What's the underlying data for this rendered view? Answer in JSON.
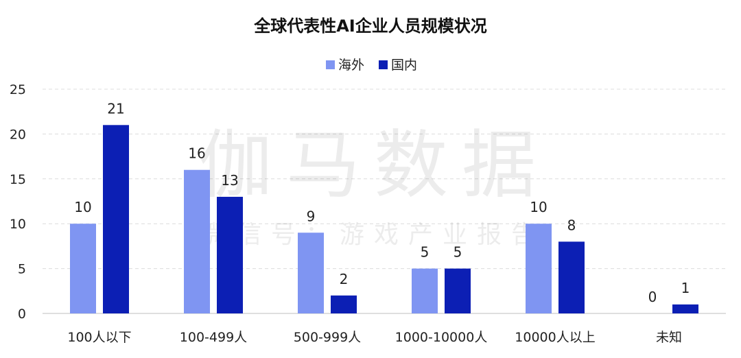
{
  "chart_data": {
    "type": "bar",
    "title": "全球代表性AI企业人员规模状况",
    "categories": [
      "100人以下",
      "100-499人",
      "500-999人",
      "1000-10000人",
      "10000人以上",
      "未知"
    ],
    "series": [
      {
        "name": "海外",
        "values": [
          10,
          16,
          9,
          5,
          10,
          0
        ],
        "color": "#7f95f2"
      },
      {
        "name": "国内",
        "values": [
          21,
          13,
          2,
          5,
          8,
          1
        ],
        "color": "#0c1fb4"
      }
    ],
    "ylim": [
      0,
      25
    ],
    "yticks": [
      0,
      5,
      10,
      15,
      20,
      25
    ],
    "grid": true,
    "legend_position": "top-center",
    "xlabel": "",
    "ylabel": ""
  },
  "watermark": {
    "main": "伽马数据",
    "sub": "微信号：游戏产业报告"
  }
}
